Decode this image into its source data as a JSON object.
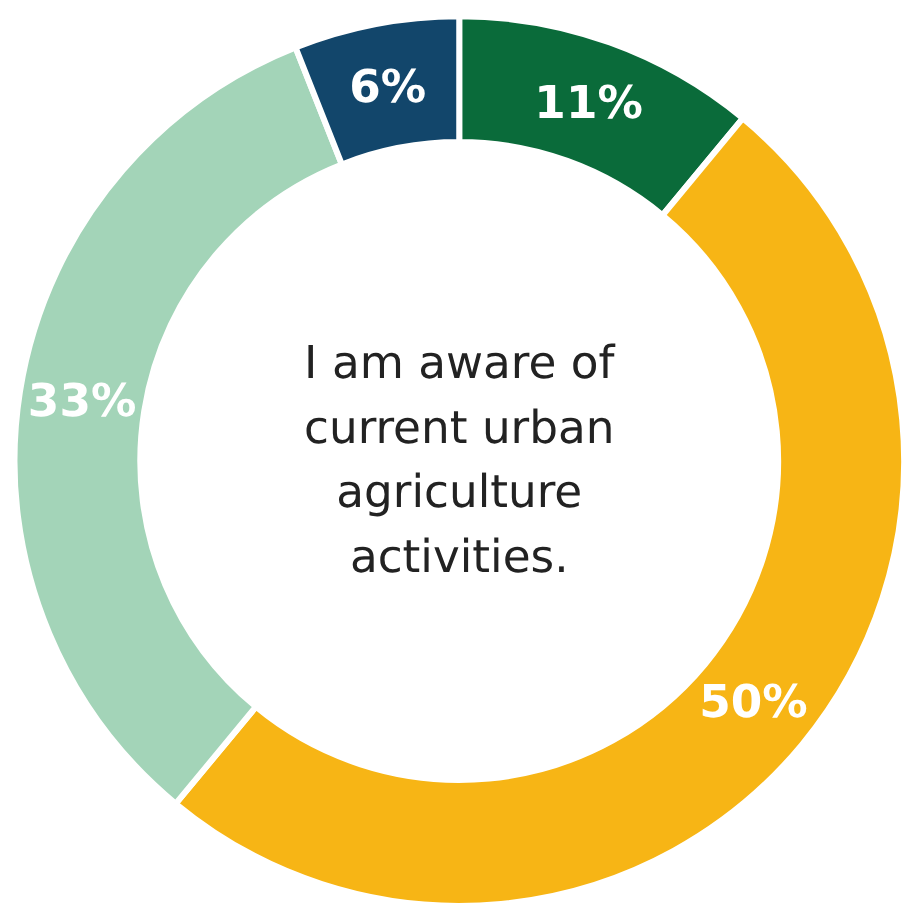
{
  "chart_data": {
    "type": "donut",
    "title": "I am aware of current urban agriculture activities.",
    "categories": [
      null,
      null,
      null,
      null
    ],
    "values": [
      11,
      50,
      33,
      6
    ],
    "colors": [
      "#0a6b3a",
      "#f7b515",
      "#a3d4b8",
      "#12466b"
    ],
    "value_labels": [
      "11%",
      "50%",
      "33%",
      "6%"
    ]
  }
}
